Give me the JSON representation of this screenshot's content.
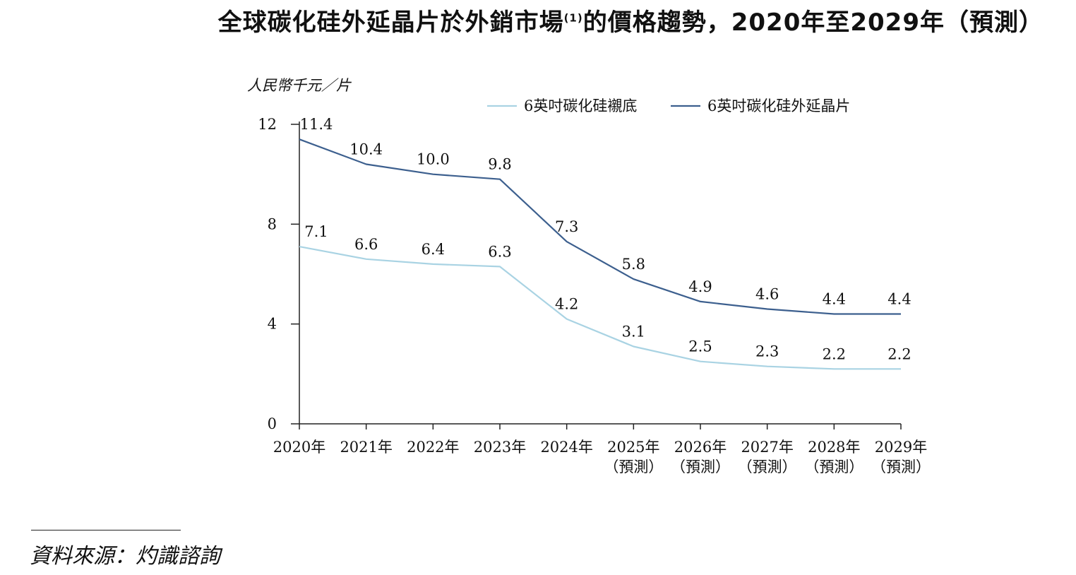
{
  "title": {
    "main": "全球碳化硅外延晶片於外銷市場",
    "sup": "(1)",
    "tail": "的價格趨勢，2020年至2029年（預測）"
  },
  "colors": {
    "substrate": "#a9d3e3",
    "epitaxial": "#3c5f8e",
    "axis": "#222222"
  },
  "chart_data": {
    "type": "line",
    "ylabel": "人民幣千元／片",
    "ylim": [
      0,
      12
    ],
    "yticks": [
      0,
      4,
      8,
      12
    ],
    "grid": false,
    "legend_position": "top-right",
    "categories": [
      [
        "2020年",
        ""
      ],
      [
        "2021年",
        ""
      ],
      [
        "2022年",
        ""
      ],
      [
        "2023年",
        ""
      ],
      [
        "2024年",
        ""
      ],
      [
        "2025年",
        "（預測）"
      ],
      [
        "2026年",
        "（預測）"
      ],
      [
        "2027年",
        "（預測）"
      ],
      [
        "2028年",
        "（預測）"
      ],
      [
        "2029年",
        "（預測）"
      ]
    ],
    "series": [
      {
        "name": "6英吋碳化硅襯底",
        "color": "#a9d3e3",
        "values": [
          7.1,
          6.6,
          6.4,
          6.3,
          4.2,
          3.1,
          2.5,
          2.3,
          2.2,
          2.2
        ],
        "labels": [
          "7.1",
          "6.6",
          "6.4",
          "6.3",
          "4.2",
          "3.1",
          "2.5",
          "2.3",
          "2.2",
          "2.2"
        ]
      },
      {
        "name": "6英吋碳化硅外延晶片",
        "color": "#3c5f8e",
        "values": [
          11.4,
          10.4,
          10.0,
          9.8,
          7.3,
          5.8,
          4.9,
          4.6,
          4.4,
          4.4
        ],
        "labels": [
          "11.4",
          "10.4",
          "10.0",
          "9.8",
          "7.3",
          "5.8",
          "4.9",
          "4.6",
          "4.4",
          "4.4"
        ]
      }
    ]
  },
  "source": "資料來源：灼識諮詢"
}
